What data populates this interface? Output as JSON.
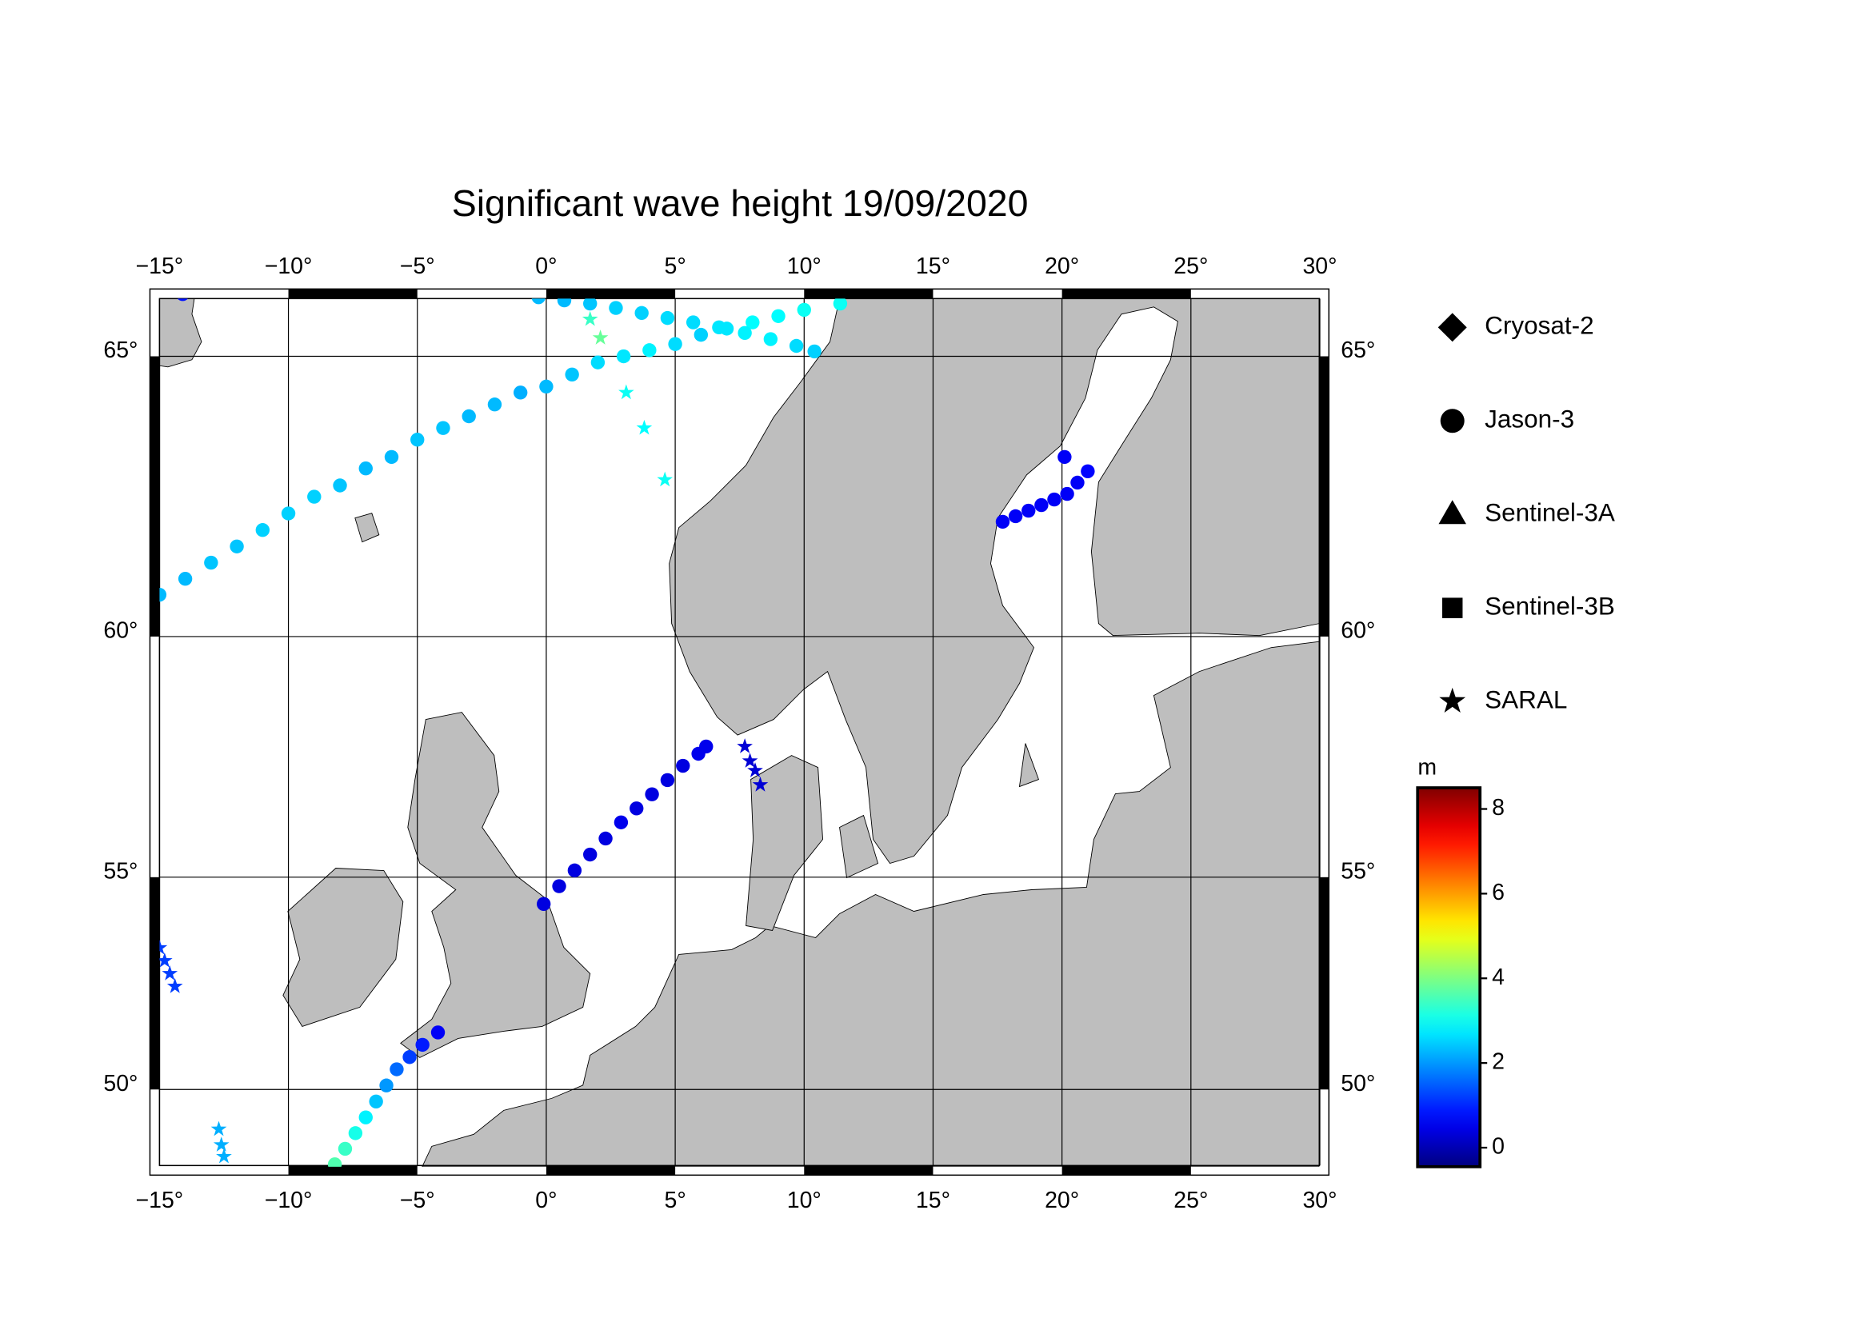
{
  "chart_data": {
    "type": "map",
    "title": "Significant wave height 19/09/2020",
    "projection": "mercator",
    "xlim": [
      -15.37,
      30.35
    ],
    "ylim": [
      47.82,
      66.08
    ],
    "xticks": [
      {
        "value": -15,
        "label": "−15°"
      },
      {
        "value": -10,
        "label": "−10°"
      },
      {
        "value": -5,
        "label": "−5°"
      },
      {
        "value": 0,
        "label": "0°"
      },
      {
        "value": 5,
        "label": "5°"
      },
      {
        "value": 10,
        "label": "10°"
      },
      {
        "value": 15,
        "label": "15°"
      },
      {
        "value": 20,
        "label": "20°"
      },
      {
        "value": 25,
        "label": "25°"
      },
      {
        "value": 30,
        "label": "30°"
      }
    ],
    "yticks": [
      {
        "value": 50,
        "label": "50°"
      },
      {
        "value": 55,
        "label": "55°"
      },
      {
        "value": 60,
        "label": "60°"
      },
      {
        "value": 65,
        "label": "65°"
      }
    ],
    "grid": true,
    "colorbar": {
      "label": "m",
      "colormap": "jet",
      "clim": [
        -0.45,
        8.5
      ],
      "ticks": [
        0,
        2,
        4,
        6,
        8
      ]
    },
    "series": [
      {
        "name": "Cryosat-2",
        "marker": "diamond",
        "lon": [],
        "lat": [],
        "values": []
      },
      {
        "name": "Jason-3",
        "marker": "circle",
        "lon": [
          -15,
          -14,
          -13,
          -12,
          -11,
          -10,
          -9,
          -8,
          -7,
          -6,
          -5,
          -4,
          -3,
          -2,
          -1,
          0,
          1,
          2,
          3,
          4,
          5,
          6,
          7,
          8,
          9,
          10,
          11.4,
          -0.3,
          0.7,
          1.7,
          2.7,
          3.7,
          4.7,
          5.7,
          6.7,
          7.7,
          8.7,
          9.7,
          10.4,
          -14.1,
          -0.1,
          0.5,
          1.1,
          1.7,
          2.3,
          2.9,
          3.5,
          4.1,
          4.7,
          5.3,
          5.9,
          6.2,
          -8.2,
          -7.8,
          -7.4,
          -7.0,
          -6.6,
          -6.2,
          -5.8,
          -5.3,
          -4.8,
          -4.2,
          17.7,
          18.2,
          18.7,
          19.2,
          19.7,
          20.2,
          20.6,
          21.0,
          20.1
        ],
        "lat": [
          60.8,
          61.1,
          61.4,
          61.7,
          62.0,
          62.3,
          62.6,
          62.8,
          63.1,
          63.3,
          63.6,
          63.8,
          64.0,
          64.2,
          64.4,
          64.5,
          64.7,
          64.9,
          65.0,
          65.1,
          65.2,
          65.35,
          65.45,
          65.55,
          65.65,
          65.75,
          65.85,
          65.95,
          65.9,
          65.85,
          65.78,
          65.7,
          65.62,
          65.55,
          65.47,
          65.38,
          65.28,
          65.17,
          65.08,
          66.0,
          54.4,
          54.8,
          55.15,
          55.5,
          55.85,
          56.2,
          56.5,
          56.8,
          57.1,
          57.4,
          57.65,
          57.8,
          48.1,
          48.5,
          48.9,
          49.3,
          49.7,
          50.1,
          50.5,
          50.8,
          51.1,
          51.4,
          62.15,
          62.25,
          62.35,
          62.45,
          62.55,
          62.65,
          62.85,
          63.05,
          63.3
        ],
        "values": [
          2.3,
          2.3,
          2.4,
          2.4,
          2.5,
          2.5,
          2.5,
          2.4,
          2.3,
          2.3,
          2.4,
          2.4,
          2.3,
          2.3,
          2.2,
          2.3,
          2.4,
          2.6,
          2.7,
          2.8,
          2.6,
          2.5,
          2.7,
          2.9,
          2.9,
          3.0,
          3.0,
          2.3,
          2.3,
          2.4,
          2.5,
          2.5,
          2.6,
          2.6,
          2.7,
          2.8,
          2.8,
          2.6,
          2.5,
          0.8,
          0.4,
          0.4,
          0.4,
          0.4,
          0.4,
          0.5,
          0.4,
          0.4,
          0.4,
          0.4,
          0.5,
          0.5,
          3.6,
          3.4,
          3.1,
          2.8,
          2.4,
          2.0,
          1.6,
          1.2,
          0.9,
          0.6,
          0.6,
          0.6,
          0.6,
          0.6,
          0.6,
          0.6,
          0.6,
          0.7,
          0.6
        ]
      },
      {
        "name": "Sentinel-3A",
        "marker": "triangle",
        "lon": [],
        "lat": [],
        "values": []
      },
      {
        "name": "Sentinel-3B",
        "marker": "square",
        "lon": [],
        "lat": [],
        "values": []
      },
      {
        "name": "SARAL",
        "marker": "star",
        "lon": [
          1.7,
          2.1,
          3.1,
          3.8,
          4.6,
          7.7,
          7.9,
          8.1,
          8.3,
          -15.0,
          -14.8,
          -14.6,
          -14.4,
          -12.7,
          -12.6,
          -12.5
        ],
        "lat": [
          65.6,
          65.3,
          64.4,
          63.8,
          62.9,
          57.8,
          57.5,
          57.3,
          57.0,
          53.4,
          53.1,
          52.8,
          52.5,
          49.0,
          48.6,
          48.3
        ],
        "values": [
          3.4,
          3.8,
          3.0,
          2.9,
          3.0,
          0.3,
          0.3,
          0.3,
          0.3,
          1.2,
          1.2,
          1.2,
          1.2,
          2.2,
          2.2,
          2.2
        ]
      }
    ]
  }
}
